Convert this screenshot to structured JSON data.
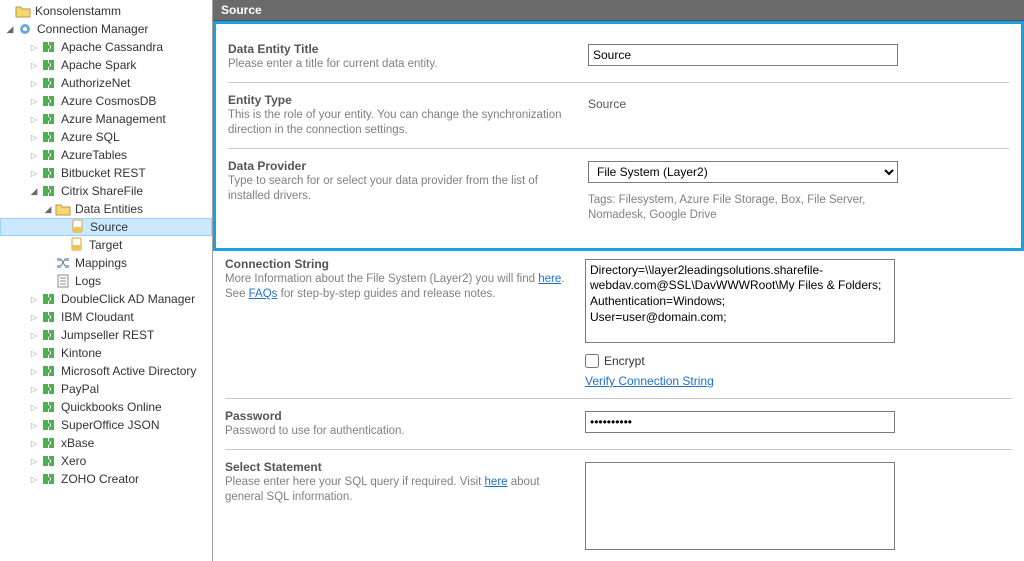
{
  "tree": {
    "root": "Konsolenstamm",
    "manager": "Connection Manager",
    "items": [
      "Apache Cassandra",
      "Apache Spark",
      "AuthorizeNet",
      "Azure CosmosDB",
      "Azure Management",
      "Azure SQL",
      "AzureTables",
      "Bitbucket REST"
    ],
    "sharefile": "Citrix ShareFile",
    "data_entities": "Data Entities",
    "source": "Source",
    "target": "Target",
    "mappings": "Mappings",
    "logs": "Logs",
    "items2": [
      "DoubleClick  AD Manager",
      "IBM Cloudant",
      "Jumpseller REST",
      "Kintone",
      "Microsoft Active Directory",
      "PayPal",
      "Quickbooks Online",
      "SuperOffice JSON",
      "xBase",
      "Xero",
      "ZOHO Creator"
    ]
  },
  "header": {
    "title": "Source"
  },
  "form": {
    "entity_title": {
      "label": "Data Entity Title",
      "desc": "Please enter a title for current data entity.",
      "value": "Source"
    },
    "entity_type": {
      "label": "Entity Type",
      "desc": "This is the role of your entity. You can change the synchronization direction in the connection settings.",
      "value": "Source"
    },
    "provider": {
      "label": "Data Provider",
      "desc": "Type to search for or select your data provider from the list of installed drivers.",
      "value": "File System (Layer2)",
      "tags": "Tags: Filesystem, Azure File Storage, Box, File Server, Nomadesk, Google Drive"
    },
    "connection": {
      "label": "Connection String",
      "desc1": "More Information about the File System (Layer2) you will find ",
      "here": "here",
      "desc2": ". See ",
      "faqs": "FAQs",
      "desc3": " for step-by-step guides and release notes.",
      "value": "Directory=\\\\layer2leadingsolutions.sharefile-webdav.com@SSL\\DavWWWRoot\\My Files & Folders;\nAuthentication=Windows;\nUser=user@domain.com;",
      "encrypt": "Encrypt",
      "verify": "Verify Connection String"
    },
    "password": {
      "label": "Password",
      "desc": "Password to use for authentication.",
      "value": "••••••••••"
    },
    "select": {
      "label": "Select Statement",
      "desc1": "Please enter here your SQL query if required. Visit ",
      "here": "here",
      "desc2": " about general SQL information."
    }
  }
}
